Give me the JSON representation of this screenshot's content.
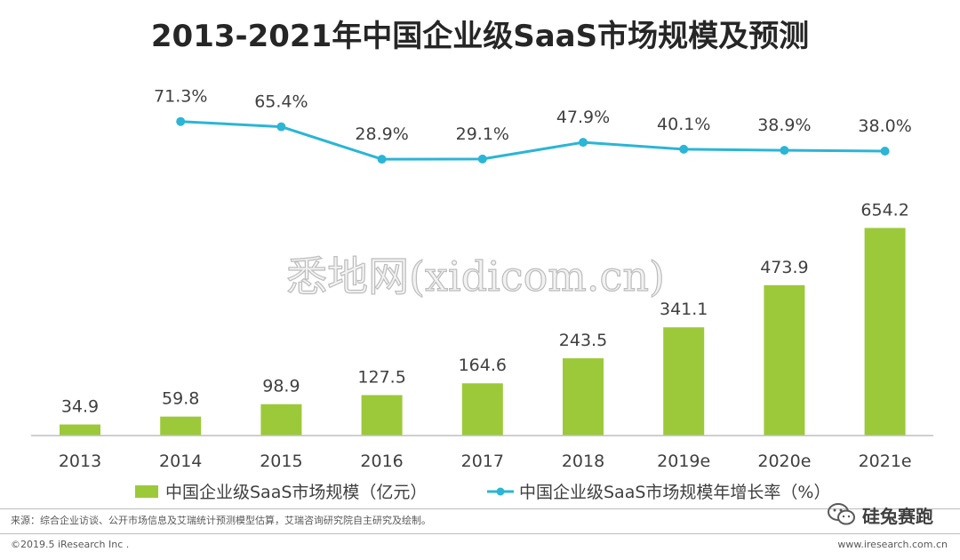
{
  "chart_data": {
    "type": "bar",
    "title": "2013-2021年中国企业级SaaS市场规模及预测",
    "categories": [
      "2013",
      "2014",
      "2015",
      "2016",
      "2017",
      "2018",
      "2019e",
      "2020e",
      "2021e"
    ],
    "series": [
      {
        "name": "中国企业级SaaS市场规模（亿元）",
        "type": "bar",
        "values": [
          34.9,
          59.8,
          98.9,
          127.5,
          164.6,
          243.5,
          341.1,
          473.9,
          654.2
        ],
        "labels": [
          "34.9",
          "59.8",
          "98.9",
          "127.5",
          "164.6",
          "243.5",
          "341.1",
          "473.9",
          "654.2"
        ],
        "color": "#9cc93a"
      },
      {
        "name": "中国企业级SaaS市场规模年增长率（%）",
        "type": "line",
        "x": [
          "2014",
          "2015",
          "2016",
          "2017",
          "2018",
          "2019e",
          "2020e",
          "2021e"
        ],
        "values": [
          71.3,
          65.4,
          28.9,
          29.1,
          47.9,
          40.1,
          38.9,
          38.0
        ],
        "labels": [
          "71.3%",
          "65.4%",
          "28.9%",
          "29.1%",
          "47.9%",
          "40.1%",
          "38.9%",
          "38.0%"
        ],
        "color": "#2bb5d6"
      }
    ],
    "legend_position": "bottom-center",
    "grid": false
  },
  "watermark": "悉地网(xidicom.cn)",
  "source_note": "来源：综合企业访谈、公开市场信息及艾瑞统计预测模型估算，艾瑞咨询研究院自主研究及绘制。",
  "copyright": "©2019.5 iResearch Inc .",
  "website": "www.iresearch.com.cn",
  "badge": {
    "text": "硅兔赛跑",
    "icon": "wechat-icon"
  }
}
